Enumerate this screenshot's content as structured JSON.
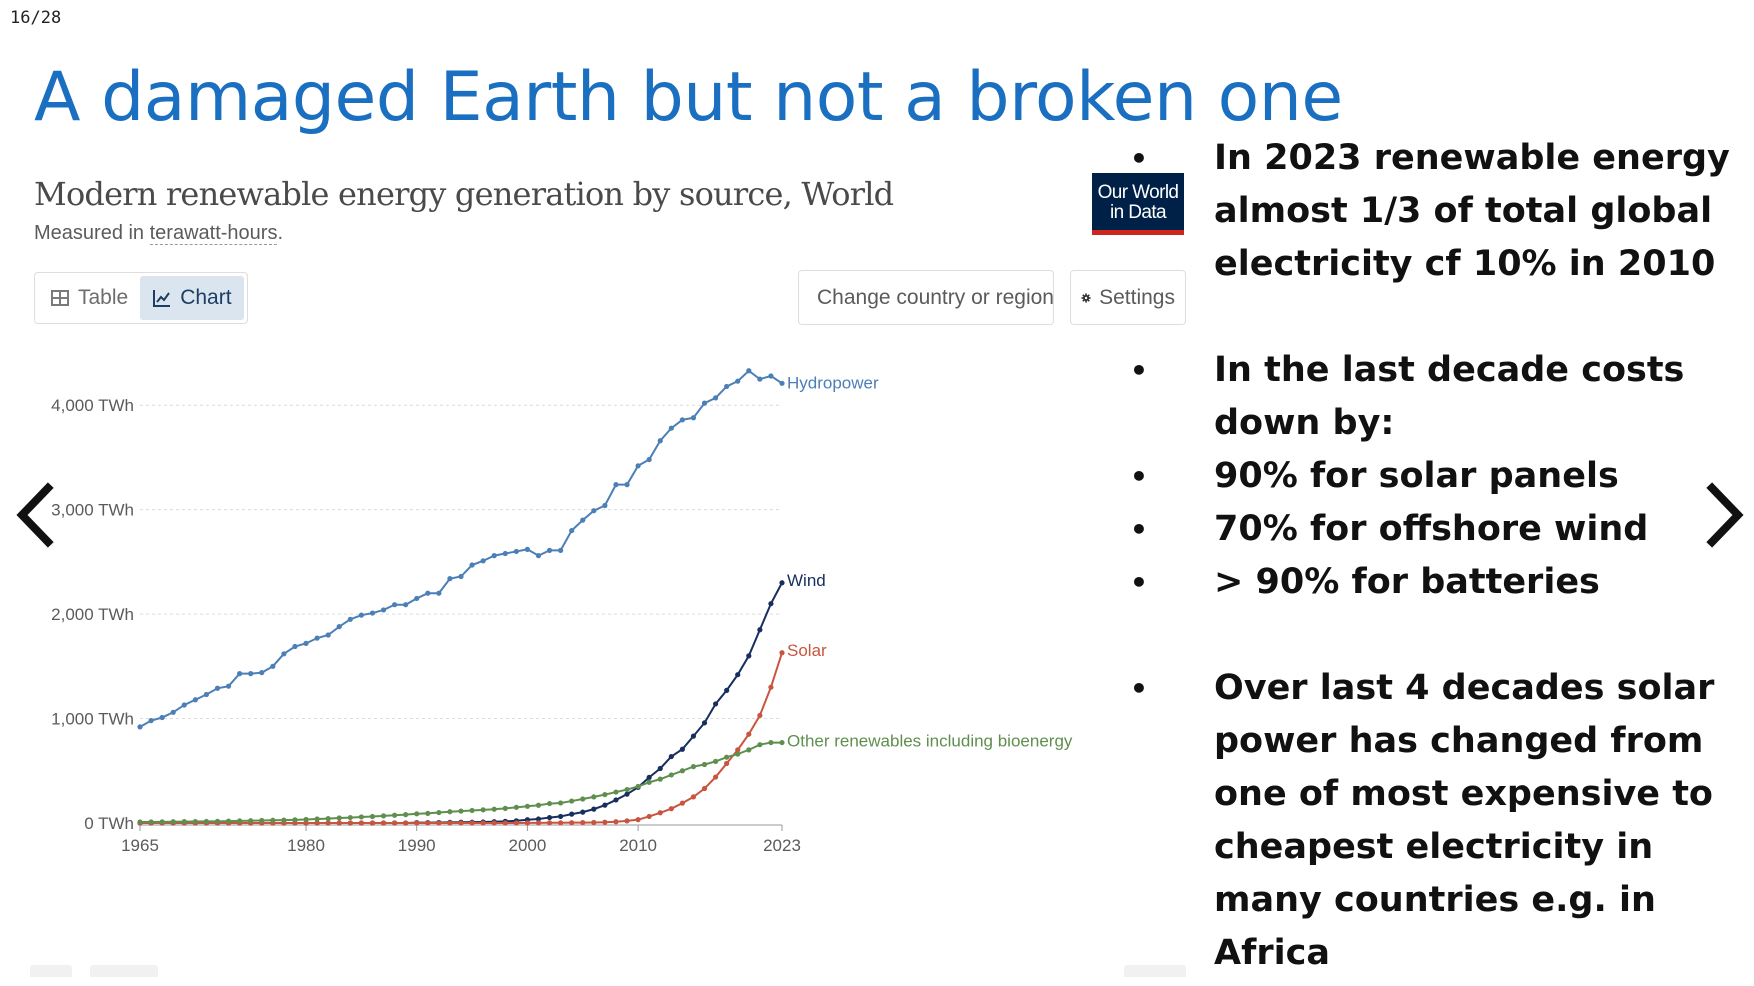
{
  "slide": {
    "counter": "16/28",
    "title": "A damaged Earth but not a broken one"
  },
  "nav": {
    "prev_label": "Previous slide",
    "next_label": "Next slide"
  },
  "owid": {
    "title": "Modern renewable energy generation by source, World",
    "subtitle_prefix": "Measured in ",
    "subtitle_unit": "terawatt-hours",
    "subtitle_suffix": ".",
    "logo_line1": "Our World",
    "logo_line2": "in Data",
    "tabs": [
      {
        "label": "Table",
        "icon": "table-icon",
        "active": false
      },
      {
        "label": "Chart",
        "icon": "line-chart-icon",
        "active": true
      }
    ],
    "change_country_label": "Change country or region",
    "settings_label": "Settings"
  },
  "colors": {
    "title_blue": "#1a6fc0",
    "hydropower": "#4c7fb6",
    "wind": "#172e5e",
    "solar": "#c9553f",
    "other": "#5f8f4e",
    "owid_navy": "#002147",
    "owid_red": "#ce261e"
  },
  "chart_data": {
    "type": "line",
    "title": "Modern renewable energy generation by source, World",
    "subtitle": "Measured in terawatt-hours.",
    "xlim": [
      1965,
      2023
    ],
    "ylim": [
      0,
      4500
    ],
    "x_ticks": [
      "1965",
      "1980",
      "1990",
      "2000",
      "2010",
      "2023"
    ],
    "y_ticks": [
      {
        "value": 0,
        "label": "0 TWh"
      },
      {
        "value": 1000,
        "label": "1,000 TWh"
      },
      {
        "value": 2000,
        "label": "2,000 TWh"
      },
      {
        "value": 3000,
        "label": "3,000 TWh"
      },
      {
        "value": 4000,
        "label": "4,000 TWh"
      }
    ],
    "grid": true,
    "legend": "inline labels at line ends",
    "x": [
      1965,
      1966,
      1967,
      1968,
      1969,
      1970,
      1971,
      1972,
      1973,
      1974,
      1975,
      1976,
      1977,
      1978,
      1979,
      1980,
      1981,
      1982,
      1983,
      1984,
      1985,
      1986,
      1987,
      1988,
      1989,
      1990,
      1991,
      1992,
      1993,
      1994,
      1995,
      1996,
      1997,
      1998,
      1999,
      2000,
      2001,
      2002,
      2003,
      2004,
      2005,
      2006,
      2007,
      2008,
      2009,
      2010,
      2011,
      2012,
      2013,
      2014,
      2015,
      2016,
      2017,
      2018,
      2019,
      2020,
      2021,
      2022,
      2023
    ],
    "series": [
      {
        "name": "Hydropower",
        "color": "#4c7fb6",
        "values": [
          920,
          980,
          1010,
          1060,
          1130,
          1180,
          1230,
          1290,
          1310,
          1430,
          1430,
          1440,
          1500,
          1620,
          1690,
          1720,
          1770,
          1800,
          1880,
          1950,
          1990,
          2010,
          2040,
          2090,
          2090,
          2150,
          2200,
          2200,
          2340,
          2360,
          2470,
          2510,
          2560,
          2580,
          2600,
          2620,
          2560,
          2610,
          2610,
          2800,
          2900,
          2990,
          3040,
          3240,
          3240,
          3420,
          3480,
          3660,
          3780,
          3860,
          3880,
          4020,
          4070,
          4180,
          4230,
          4330,
          4250,
          4280,
          4210
        ]
      },
      {
        "name": "Wind",
        "color": "#172e5e",
        "values": [
          0,
          0,
          0,
          0,
          0,
          0,
          0,
          0,
          0,
          0,
          0,
          0,
          0,
          0,
          0,
          0,
          0,
          0,
          0,
          0,
          0,
          0,
          0,
          0,
          0,
          4,
          4,
          5,
          6,
          7,
          8,
          10,
          12,
          16,
          21,
          31,
          38,
          52,
          63,
          85,
          104,
          133,
          171,
          221,
          276,
          342,
          437,
          522,
          636,
          706,
          832,
          959,
          1140,
          1270,
          1420,
          1600,
          1850,
          2100,
          2300
        ]
      },
      {
        "name": "Solar",
        "color": "#c9553f",
        "values": [
          0,
          0,
          0,
          0,
          0,
          0,
          0,
          0,
          0,
          0,
          0,
          0,
          0,
          0,
          0,
          0,
          0,
          0,
          0,
          0,
          0,
          0,
          0,
          0,
          0,
          0,
          0,
          0,
          0,
          0,
          0,
          0,
          0,
          0,
          0,
          1,
          1,
          2,
          2,
          3,
          4,
          5,
          7,
          12,
          20,
          32,
          63,
          98,
          137,
          190,
          250,
          330,
          440,
          570,
          700,
          850,
          1030,
          1300,
          1630
        ]
      },
      {
        "name": "Other renewables including bioenergy",
        "color": "#5f8f4e",
        "values": [
          10,
          10,
          11,
          12,
          13,
          14,
          15,
          16,
          18,
          20,
          22,
          24,
          26,
          28,
          30,
          34,
          38,
          42,
          48,
          52,
          58,
          62,
          68,
          74,
          80,
          88,
          92,
          100,
          108,
          114,
          120,
          126,
          132,
          140,
          150,
          160,
          170,
          186,
          192,
          210,
          230,
          250,
          272,
          296,
          320,
          350,
          390,
          420,
          460,
          500,
          540,
          560,
          590,
          630,
          660,
          700,
          750,
          770,
          770
        ]
      }
    ]
  },
  "bullets": [
    {
      "text": "In 2023 renewable energy almost 1/3 of total global electricity cf 10% in 2010",
      "gap_before": false
    },
    {
      "text": "In the last decade costs down by:",
      "gap_before": true
    },
    {
      "text": "90% for solar panels",
      "gap_before": false
    },
    {
      "text": "70% for offshore wind",
      "gap_before": false
    },
    {
      "text": "> 90% for batteries",
      "gap_before": false
    },
    {
      "text": "Over last 4 decades solar power has changed from one of most expensive to cheapest electricity in many countries e.g. in Africa",
      "gap_before": true
    }
  ]
}
